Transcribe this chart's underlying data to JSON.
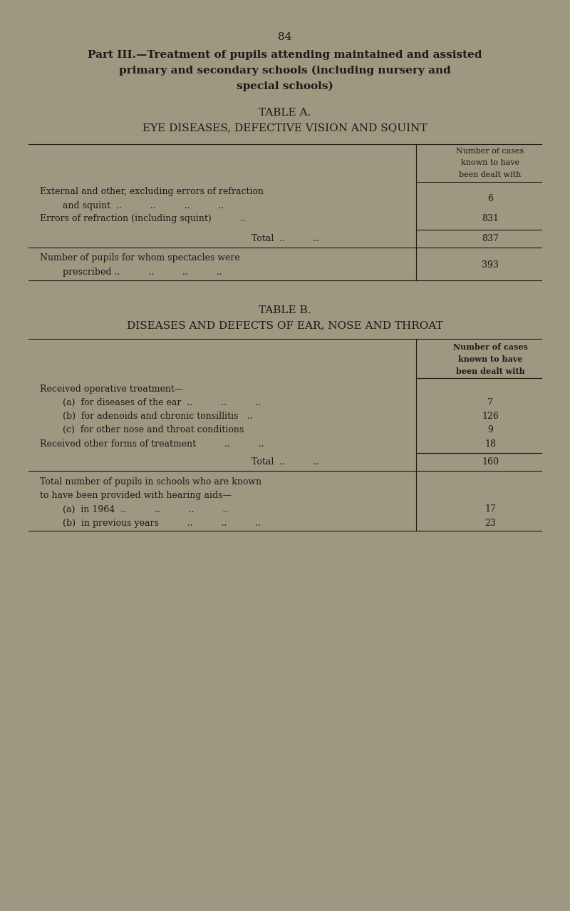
{
  "bg_color": "#9e9880",
  "text_color": "#1a1a1a",
  "page_number": "84",
  "part_title_line1": "Part III.—Treatment of pupils attending maintained and assisted",
  "part_title_line2": "primary and secondary schools (including nursery and",
  "part_title_line3": "special schools)",
  "table_a_title": "TABLE A.",
  "table_a_subtitle": "EYE DISEASES, DEFECTIVE VISION AND SQUINT",
  "table_b_title": "TABLE B.",
  "table_b_subtitle": "DISEASES AND DEFECTS OF EAR, NOSE AND THROAT"
}
